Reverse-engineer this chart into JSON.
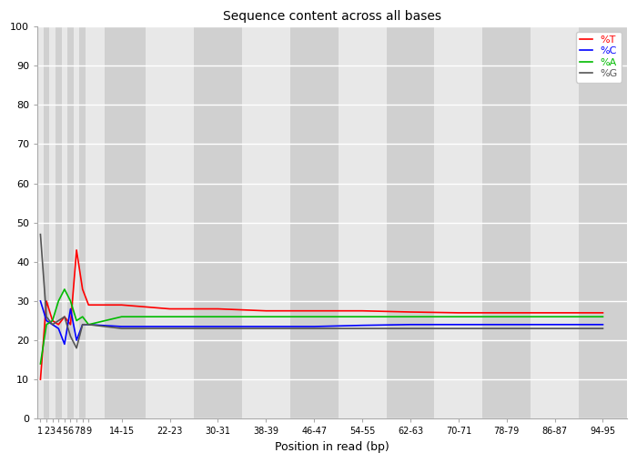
{
  "title": "Sequence content across all bases",
  "xlabel": "Position in read (bp)",
  "ylabel": "",
  "ylim": [
    0,
    100
  ],
  "yticks": [
    0,
    10,
    20,
    30,
    40,
    50,
    60,
    70,
    80,
    90,
    100
  ],
  "xtick_labels": [
    "1",
    "2",
    "3",
    "4",
    "5",
    "6",
    "7",
    "8",
    "9",
    "14-15",
    "22-23",
    "30-31",
    "38-39",
    "46-47",
    "54-55",
    "62-63",
    "70-71",
    "78-79",
    "86-87",
    "94-95"
  ],
  "xtick_positions": [
    1,
    2,
    3,
    4,
    5,
    6,
    7,
    8,
    9,
    14.5,
    22.5,
    30.5,
    38.5,
    46.5,
    54.5,
    62.5,
    70.5,
    78.5,
    86.5,
    94.5
  ],
  "legend": [
    "%T",
    "%C",
    "%A",
    "%G"
  ],
  "legend_colors": [
    "#ff0000",
    "#0000ff",
    "#00bb00",
    "#555555"
  ],
  "line_colors": {
    "T": "#ff0000",
    "C": "#0000ff",
    "A": "#00bb00",
    "G": "#555555"
  },
  "T": [
    10,
    30,
    25,
    24,
    26,
    24,
    43,
    33,
    29,
    29,
    28,
    28,
    27.5,
    27.5,
    27.5,
    27.2,
    27,
    27,
    27,
    27
  ],
  "C": [
    30,
    25,
    24,
    23,
    19,
    28,
    20,
    24,
    24,
    23.5,
    23.5,
    23.5,
    23.5,
    23.5,
    23.8,
    24,
    24,
    24,
    24,
    24
  ],
  "A": [
    14,
    24,
    25,
    30,
    33,
    30,
    25,
    26,
    24,
    26,
    26,
    26,
    26,
    26,
    26,
    26,
    26,
    26,
    26,
    26
  ],
  "G": [
    47,
    26,
    24,
    25,
    26,
    21,
    18,
    24,
    24,
    23,
    23,
    23,
    23,
    23,
    23,
    23,
    23,
    23,
    23,
    23
  ],
  "stripe_light": "#e8e8e8",
  "stripe_dark": "#d0d0d0",
  "bg_color": "#ffffff"
}
